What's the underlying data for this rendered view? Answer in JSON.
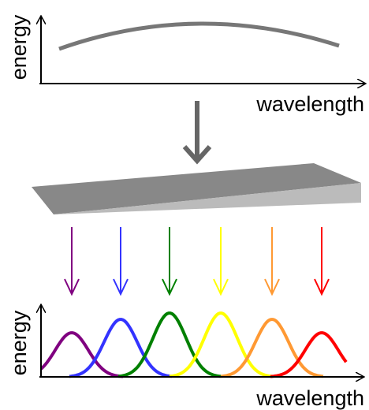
{
  "top_plot": {
    "y_label": "energy",
    "x_label": "wavelength"
  },
  "bottom_plot": {
    "y_label": "energy",
    "x_label": "wavelength"
  }
}
